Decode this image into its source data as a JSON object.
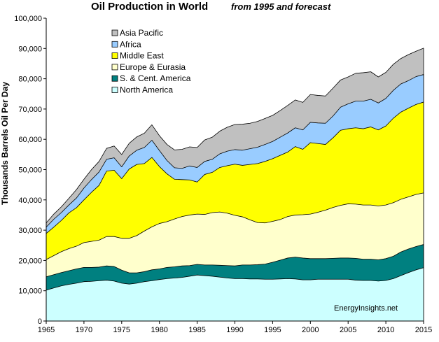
{
  "chart_data": {
    "type": "area",
    "stacked": true,
    "title": "Oil Production  in World",
    "subtitle": "from 1995 and forecast",
    "xlabel": "",
    "ylabel": "Thousands  Barrels Oil Per Day",
    "xlim": [
      1965,
      2015
    ],
    "ylim": [
      0,
      100000
    ],
    "x_ticks": [
      "1965",
      "1970",
      "1975",
      "1980",
      "1985",
      "1990",
      "1995",
      "2000",
      "2005",
      "2010",
      "2015"
    ],
    "y_ticks": [
      "0",
      "10,000",
      "20,000",
      "30,000",
      "40,000",
      "50,000",
      "60,000",
      "70,000",
      "80,000",
      "90,000",
      "100,000"
    ],
    "x": [
      1965,
      1966,
      1967,
      1968,
      1969,
      1970,
      1971,
      1972,
      1973,
      1974,
      1975,
      1976,
      1977,
      1978,
      1979,
      1980,
      1981,
      1982,
      1983,
      1984,
      1985,
      1986,
      1987,
      1988,
      1989,
      1990,
      1991,
      1992,
      1993,
      1994,
      1995,
      1996,
      1997,
      1998,
      1999,
      2000,
      2001,
      2002,
      2003,
      2004,
      2005,
      2006,
      2007,
      2008,
      2009,
      2010,
      2011,
      2012,
      2013,
      2014,
      2015
    ],
    "grid": false,
    "legend_position": "top-left",
    "series": [
      {
        "name": "North America",
        "color": "#ccffff",
        "values": [
          10200,
          10900,
          11600,
          12100,
          12500,
          13000,
          13100,
          13300,
          13500,
          13200,
          12500,
          12200,
          12500,
          13000,
          13300,
          13700,
          14000,
          14200,
          14400,
          14800,
          15200,
          15000,
          14800,
          14500,
          14200,
          14000,
          14000,
          13900,
          13900,
          13800,
          13800,
          13900,
          14000,
          13900,
          13600,
          13600,
          13800,
          13800,
          13800,
          13800,
          13800,
          13500,
          13400,
          13400,
          13200,
          13400,
          14000,
          15000,
          16000,
          16900,
          17600
        ]
      },
      {
        "name": "S. & Cent. America",
        "color": "#008080",
        "values": [
          14600,
          15300,
          16000,
          16600,
          17200,
          17700,
          17700,
          17800,
          18200,
          18000,
          16800,
          15900,
          15900,
          16300,
          16900,
          17200,
          17700,
          17900,
          18200,
          18300,
          18700,
          18500,
          18500,
          18400,
          18300,
          18200,
          18500,
          18500,
          18600,
          18800,
          19400,
          20100,
          20800,
          21100,
          20800,
          20600,
          20600,
          20600,
          20700,
          20800,
          20800,
          20700,
          20400,
          20400,
          20200,
          20600,
          21400,
          22800,
          23800,
          24600,
          25300
        ]
      },
      {
        "name": "Europe & Eurasia",
        "color": "#ffffcc",
        "values": [
          20300,
          21600,
          22900,
          23900,
          24700,
          25900,
          26300,
          26700,
          27900,
          27900,
          27300,
          27300,
          28200,
          29700,
          31100,
          32200,
          32800,
          33700,
          34500,
          35000,
          35300,
          35200,
          35800,
          36000,
          35600,
          34900,
          34400,
          33400,
          32500,
          32400,
          32900,
          33500,
          34500,
          35000,
          35100,
          35300,
          35900,
          36600,
          37500,
          38200,
          38700,
          38600,
          38300,
          38300,
          38000,
          38300,
          39100,
          40200,
          41000,
          41800,
          42300
        ]
      },
      {
        "name": "Middle East",
        "color": "#ffff00",
        "values": [
          28900,
          31000,
          33200,
          35700,
          37400,
          40000,
          42500,
          44800,
          49500,
          49800,
          47000,
          50200,
          51700,
          52000,
          54000,
          51000,
          48600,
          46800,
          46700,
          46600,
          45900,
          48400,
          49100,
          50700,
          51300,
          51800,
          51400,
          51700,
          52000,
          52700,
          53600,
          54700,
          55800,
          57600,
          56700,
          58900,
          58600,
          58300,
          60500,
          63000,
          63500,
          63800,
          63500,
          64100,
          63100,
          64400,
          67000,
          69000,
          70300,
          71500,
          72300
        ]
      },
      {
        "name": "Africa",
        "color": "#99ccff",
        "values": [
          31000,
          33600,
          35800,
          38300,
          40600,
          43900,
          46700,
          49200,
          53400,
          53900,
          50900,
          54500,
          56400,
          57300,
          59700,
          56300,
          53000,
          50600,
          50400,
          51200,
          50700,
          52700,
          53400,
          55200,
          56100,
          56600,
          56400,
          56900,
          57400,
          58300,
          59300,
          60700,
          62100,
          63800,
          63100,
          65600,
          65400,
          65300,
          67700,
          70600,
          71700,
          72600,
          72600,
          73200,
          72000,
          73500,
          76200,
          78300,
          79400,
          80700,
          81400
        ]
      },
      {
        "name": "Asia Pacific",
        "color": "#c0c0c0",
        "values": [
          32400,
          35300,
          37700,
          40500,
          43400,
          46800,
          50000,
          52700,
          57000,
          57800,
          55000,
          58700,
          60800,
          62000,
          64800,
          61200,
          58300,
          56500,
          56700,
          57500,
          57300,
          59800,
          60700,
          62700,
          64000,
          64900,
          65000,
          65300,
          65900,
          66900,
          67900,
          69500,
          71200,
          73000,
          72200,
          74800,
          74500,
          74300,
          76900,
          79600,
          80600,
          81800,
          82000,
          82300,
          80600,
          82100,
          84800,
          86700,
          88000,
          89100,
          90100
        ]
      }
    ]
  },
  "credit": "EnergyInsights.net",
  "colors": {
    "background": "#ffffff",
    "outline": "#000000"
  }
}
